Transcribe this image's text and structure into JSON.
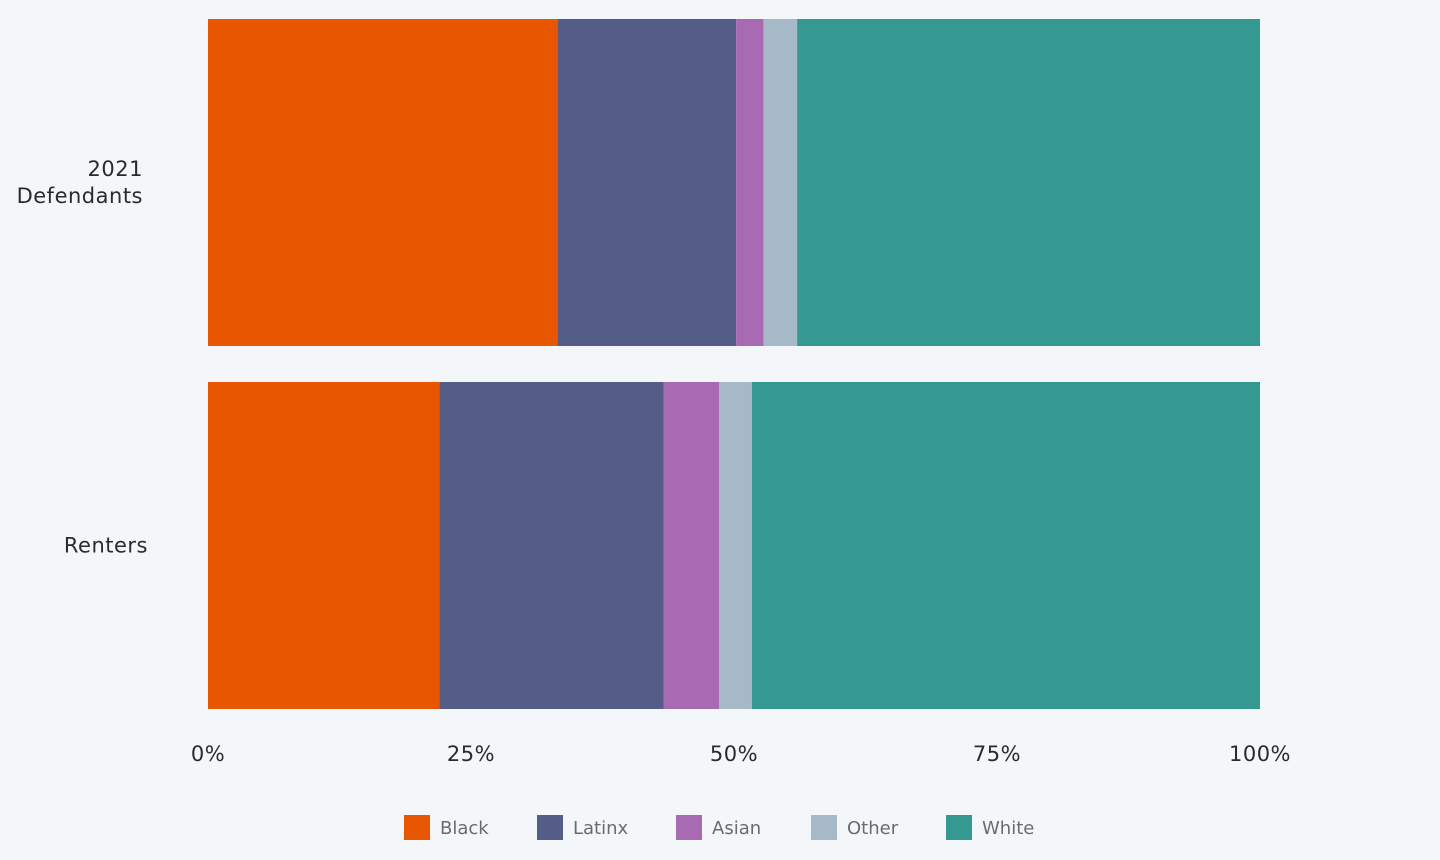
{
  "chart_data": {
    "type": "bar",
    "orientation": "horizontal",
    "stacked": true,
    "title": "",
    "xlabel": "",
    "ylabel": "",
    "xlim": [
      0,
      100
    ],
    "x_ticks": [
      "0%",
      "25%",
      "50%",
      "75%",
      "100%"
    ],
    "grid": false,
    "legend_position": "bottom",
    "categories": [
      [
        "2021",
        "Defendants"
      ],
      [
        "Renters"
      ]
    ],
    "series": [
      {
        "name": "Black",
        "color": "#e95602",
        "values": [
          33.2,
          22.0
        ]
      },
      {
        "name": "Latinx",
        "color": "#545c88",
        "values": [
          17.0,
          21.3
        ]
      },
      {
        "name": "Asian",
        "color": "#a86bb3",
        "values": [
          2.6,
          5.3
        ]
      },
      {
        "name": "Other",
        "color": "#a5b9c7",
        "values": [
          3.2,
          3.1
        ]
      },
      {
        "name": "White",
        "color": "#359891",
        "values": [
          44.0,
          48.3
        ]
      }
    ]
  }
}
